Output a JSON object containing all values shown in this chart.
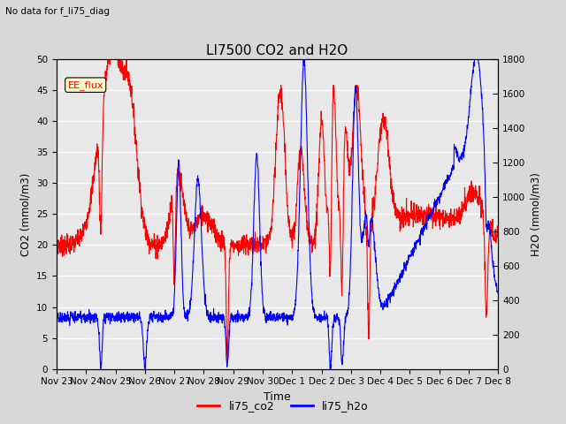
{
  "title": "LI7500 CO2 and H2O",
  "subtitle": "No data for f_li75_diag",
  "xlabel": "Time",
  "ylabel_left": "CO2 (mmol/m3)",
  "ylabel_right": "H2O (mmol/m3)",
  "ylim_left": [
    0,
    50
  ],
  "ylim_right": [
    0,
    1800
  ],
  "yticks_left": [
    0,
    5,
    10,
    15,
    20,
    25,
    30,
    35,
    40,
    45,
    50
  ],
  "yticks_right": [
    0,
    200,
    400,
    600,
    800,
    1000,
    1200,
    1400,
    1600,
    1800
  ],
  "xtick_labels": [
    "Nov 23",
    "Nov 24",
    "Nov 25",
    "Nov 26",
    "Nov 27",
    "Nov 28",
    "Nov 29",
    "Nov 30",
    "Dec 1",
    "Dec 2",
    "Dec 3",
    "Dec 4",
    "Dec 5",
    "Dec 6",
    "Dec 7",
    "Dec 8"
  ],
  "legend_labels": [
    "li75_co2",
    "li75_h2o"
  ],
  "co2_color": "red",
  "h2o_color": "blue",
  "annotation_text": "EE_flux",
  "background_color": "#d8d8d8",
  "plot_bg_color": "#e8e8e8",
  "linewidth": 0.8,
  "n_points": 2000
}
